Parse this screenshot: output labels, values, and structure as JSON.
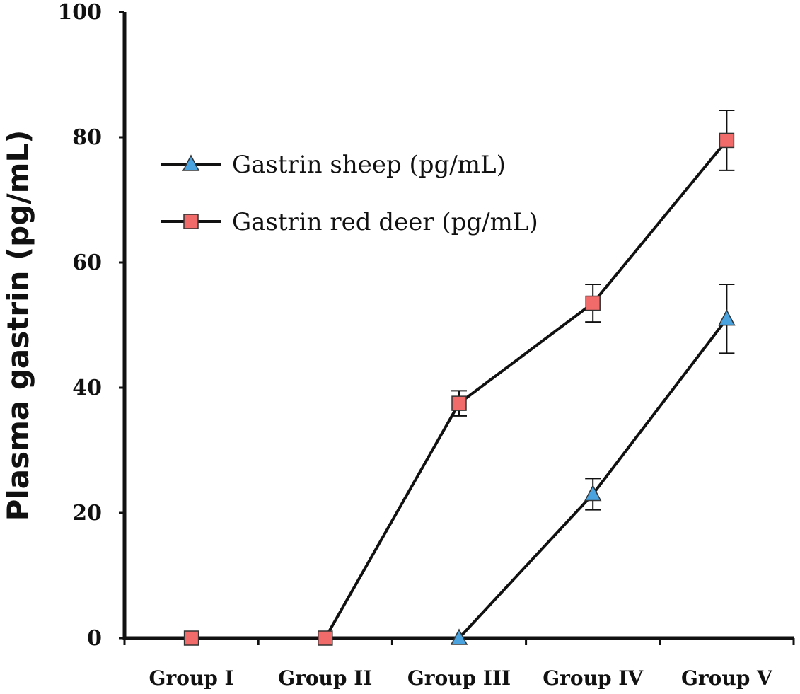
{
  "chart_data": {
    "type": "line",
    "title": "",
    "xlabel": "",
    "ylabel": "Plasma gastrin (pg/mL)",
    "ylim": [
      0,
      100
    ],
    "yticks": [
      "0",
      "20",
      "40",
      "60",
      "80",
      "100"
    ],
    "categories": [
      "Group I",
      "Group II",
      "Group III",
      "Group IV",
      "Group V"
    ],
    "legend_position": "top-left",
    "grid": false,
    "series": [
      {
        "name": "Gastrin sheep (pg/mL)",
        "marker": "triangle",
        "color": "#4aa3df",
        "values": [
          null,
          null,
          0,
          23,
          51
        ],
        "errors": [
          null,
          null,
          0,
          2.5,
          5.5
        ]
      },
      {
        "name": "Gastrin red deer (pg/mL)",
        "marker": "square",
        "color": "#f26b6b",
        "values": [
          0,
          0,
          37.5,
          53.5,
          79.5
        ],
        "errors": [
          0,
          0,
          2,
          3,
          4.8
        ]
      }
    ]
  }
}
